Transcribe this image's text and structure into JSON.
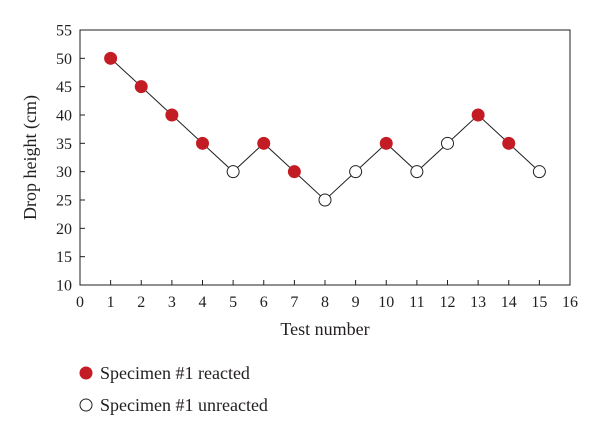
{
  "chart_data": {
    "type": "scatter",
    "title": "",
    "xlabel": "Test number",
    "ylabel": "Drop height (cm)",
    "xlim": [
      0,
      16
    ],
    "ylim": [
      10,
      55
    ],
    "xticks": [
      0,
      1,
      2,
      3,
      4,
      5,
      6,
      7,
      8,
      9,
      10,
      11,
      12,
      13,
      14,
      15,
      16
    ],
    "yticks": [
      10,
      15,
      20,
      25,
      30,
      35,
      40,
      45,
      50,
      55
    ],
    "grid": false,
    "legend_placement": "bottom",
    "connect_points": true,
    "line_color": "#231f20",
    "series": [
      {
        "name": "Specimen #1 reacted",
        "marker": "filled-circle",
        "color": "#c41c24",
        "x": [
          1,
          2,
          3,
          4,
          6,
          7,
          10,
          13,
          14
        ],
        "y": [
          50,
          45,
          40,
          35,
          35,
          30,
          35,
          40,
          35
        ]
      },
      {
        "name": "Specimen #1 unreacted",
        "marker": "open-circle",
        "color": "#ffffff",
        "x": [
          5,
          8,
          9,
          11,
          12,
          15
        ],
        "y": [
          30,
          25,
          30,
          30,
          35,
          30
        ]
      }
    ],
    "sequence": [
      {
        "x": 1,
        "y": 50
      },
      {
        "x": 2,
        "y": 45
      },
      {
        "x": 3,
        "y": 40
      },
      {
        "x": 4,
        "y": 35
      },
      {
        "x": 5,
        "y": 30
      },
      {
        "x": 6,
        "y": 35
      },
      {
        "x": 7,
        "y": 30
      },
      {
        "x": 8,
        "y": 25
      },
      {
        "x": 9,
        "y": 30
      },
      {
        "x": 10,
        "y": 35
      },
      {
        "x": 11,
        "y": 30
      },
      {
        "x": 12,
        "y": 35
      },
      {
        "x": 13,
        "y": 40
      },
      {
        "x": 14,
        "y": 35
      },
      {
        "x": 15,
        "y": 30
      }
    ]
  }
}
